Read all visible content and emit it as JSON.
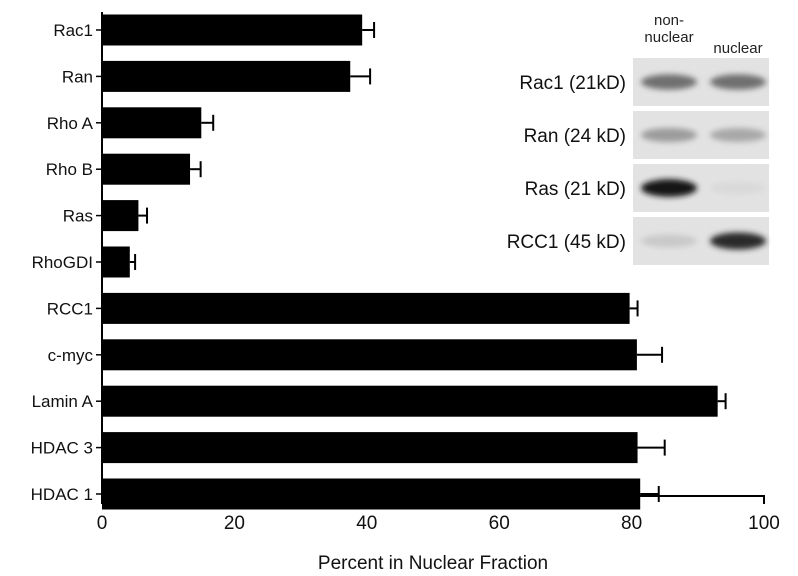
{
  "chart_data": {
    "type": "bar",
    "orientation": "horizontal",
    "categories": [
      "Rac1",
      "Ran",
      "Rho A",
      "Rho B",
      "Ras",
      "RhoGDI",
      "RCC1",
      "c-myc",
      "Lamin A",
      "HDAC 3",
      "HDAC 1"
    ],
    "values": [
      39.3,
      37.5,
      15.0,
      13.3,
      5.5,
      4.2,
      79.7,
      80.8,
      93.0,
      80.9,
      81.3
    ],
    "errors": [
      1.8,
      3.0,
      1.8,
      1.6,
      1.3,
      0.8,
      1.2,
      3.8,
      1.2,
      4.1,
      2.8
    ],
    "xlabel": "Percent in Nuclear Fraction",
    "xlim": [
      0,
      100
    ],
    "xticks": [
      "0",
      "20",
      "40",
      "60",
      "80",
      "100"
    ],
    "bar_color": "#000000",
    "inset": {
      "column_headers": [
        "non-\nnuclear",
        "nuclear"
      ],
      "bands": [
        {
          "label": "Rac1 (21kD)",
          "nonnuclear_intensity": 0.55,
          "nuclear_intensity": 0.55
        },
        {
          "label": "Ran (24 kD)",
          "nonnuclear_intensity": 0.35,
          "nuclear_intensity": 0.3
        },
        {
          "label": "Ras (21 kD)",
          "nonnuclear_intensity": 0.95,
          "nuclear_intensity": 0.08
        },
        {
          "label": "RCC1 (45 kD)",
          "nonnuclear_intensity": 0.15,
          "nuclear_intensity": 0.85
        }
      ]
    }
  }
}
